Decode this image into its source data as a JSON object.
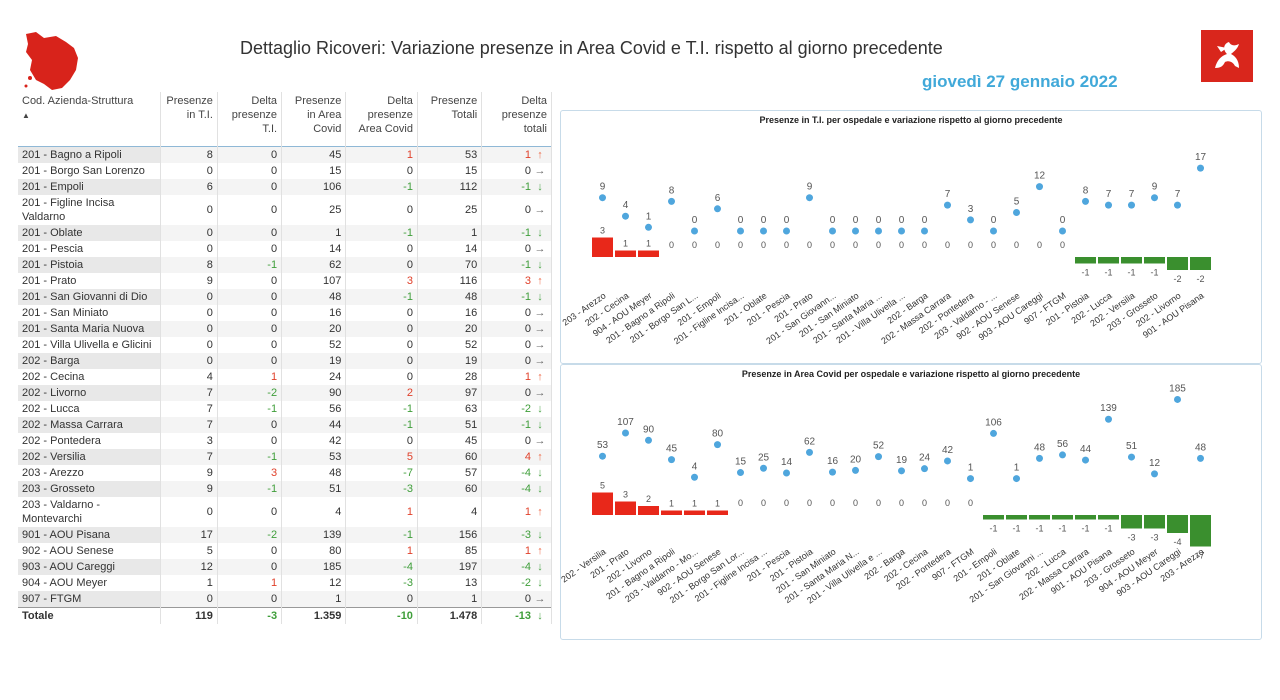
{
  "header": {
    "title": "Dettaglio Ricoveri: Variazione presenze in Area Covid e T.I. rispetto al giorno precedente",
    "date": "giovedì 27 gennaio 2022"
  },
  "table": {
    "columns": [
      "Cod. Azienda-Struttura",
      "Presenze in T.I.",
      "Delta presenze T.I.",
      "Presenze in Area Covid",
      "Delta presenze Area Covid",
      "Presenze Totali",
      "Delta presenze totali"
    ],
    "rows": [
      [
        "201 - Bagno a Ripoli",
        "8",
        "0",
        "45",
        "1",
        "53",
        "1"
      ],
      [
        "201 - Borgo San Lorenzo",
        "0",
        "0",
        "15",
        "0",
        "15",
        "0"
      ],
      [
        "201 - Empoli",
        "6",
        "0",
        "106",
        "-1",
        "112",
        "-1"
      ],
      [
        "201 - Figline Incisa Valdarno",
        "0",
        "0",
        "25",
        "0",
        "25",
        "0"
      ],
      [
        "201 - Oblate",
        "0",
        "0",
        "1",
        "-1",
        "1",
        "-1"
      ],
      [
        "201 - Pescia",
        "0",
        "0",
        "14",
        "0",
        "14",
        "0"
      ],
      [
        "201 - Pistoia",
        "8",
        "-1",
        "62",
        "0",
        "70",
        "-1"
      ],
      [
        "201 - Prato",
        "9",
        "0",
        "107",
        "3",
        "116",
        "3"
      ],
      [
        "201 - San Giovanni di Dio",
        "0",
        "0",
        "48",
        "-1",
        "48",
        "-1"
      ],
      [
        "201 - San Miniato",
        "0",
        "0",
        "16",
        "0",
        "16",
        "0"
      ],
      [
        "201 - Santa Maria Nuova",
        "0",
        "0",
        "20",
        "0",
        "20",
        "0"
      ],
      [
        "201 - Villa Ulivella e Glicini",
        "0",
        "0",
        "52",
        "0",
        "52",
        "0"
      ],
      [
        "202 - Barga",
        "0",
        "0",
        "19",
        "0",
        "19",
        "0"
      ],
      [
        "202 - Cecina",
        "4",
        "1",
        "24",
        "0",
        "28",
        "1"
      ],
      [
        "202 - Livorno",
        "7",
        "-2",
        "90",
        "2",
        "97",
        "0"
      ],
      [
        "202 - Lucca",
        "7",
        "-1",
        "56",
        "-1",
        "63",
        "-2"
      ],
      [
        "202 - Massa Carrara",
        "7",
        "0",
        "44",
        "-1",
        "51",
        "-1"
      ],
      [
        "202 - Pontedera",
        "3",
        "0",
        "42",
        "0",
        "45",
        "0"
      ],
      [
        "202 - Versilia",
        "7",
        "-1",
        "53",
        "5",
        "60",
        "4"
      ],
      [
        "203 - Arezzo",
        "9",
        "3",
        "48",
        "-7",
        "57",
        "-4"
      ],
      [
        "203 - Grosseto",
        "9",
        "-1",
        "51",
        "-3",
        "60",
        "-4"
      ],
      [
        "203 - Valdarno - Montevarchi",
        "0",
        "0",
        "4",
        "1",
        "4",
        "1"
      ],
      [
        "901 - AOU Pisana",
        "17",
        "-2",
        "139",
        "-1",
        "156",
        "-3"
      ],
      [
        "902 - AOU Senese",
        "5",
        "0",
        "80",
        "1",
        "85",
        "1"
      ],
      [
        "903 - AOU Careggi",
        "12",
        "0",
        "185",
        "-4",
        "197",
        "-4"
      ],
      [
        "904 - AOU Meyer",
        "1",
        "1",
        "12",
        "-3",
        "13",
        "-2"
      ],
      [
        "907 - FTGM",
        "0",
        "0",
        "1",
        "0",
        "1",
        "0"
      ]
    ],
    "total": [
      "Totale",
      "119",
      "-3",
      "1.359",
      "-10",
      "1.478",
      "-13"
    ]
  },
  "icons": {
    "up": "arrow-up-icon",
    "down": "arrow-down-icon",
    "flat": "arrow-right-icon"
  },
  "colors": {
    "accent": "#41a9d9",
    "up": "#ee6b4a",
    "down": "#4ea64a",
    "bar_pos": "#e8281a",
    "bar_neg": "#3a8f2e",
    "dot": "#4fa6dd"
  },
  "chart_data": [
    {
      "type": "bar",
      "title": "Presenze in T.I. per ospedale e variazione rispetto al giorno precedente",
      "categories": [
        "203 - Arezzo",
        "202 - Cecina",
        "904 - AOU Meyer",
        "201 - Bagno a Ripoli",
        "201 - Borgo San L...",
        "201 - Empoli",
        "201 - Figline Incisa...",
        "201 - Oblate",
        "201 - Pescia",
        "201 - Prato",
        "201 - San Giovann...",
        "201 - San Miniato",
        "201 - Santa Maria ...",
        "201 - Villa Ulivella ...",
        "202 - Barga",
        "202 - Massa Carrara",
        "202 - Pontedera",
        "203 - Valdarno - ...",
        "902 - AOU Senese",
        "903 - AOU Careggi",
        "907 - FTGM",
        "201 - Pistoia",
        "202 - Lucca",
        "202 - Versilia",
        "203 - Grosseto",
        "202 - Livorno",
        "901 - AOU Pisana"
      ],
      "series": [
        {
          "name": "Presenze",
          "values": [
            9,
            4,
            1,
            8,
            0,
            6,
            0,
            0,
            0,
            9,
            0,
            0,
            0,
            0,
            0,
            7,
            3,
            0,
            5,
            12,
            0,
            8,
            7,
            7,
            9,
            7,
            17
          ]
        },
        {
          "name": "Variazione",
          "values": [
            3,
            1,
            1,
            0,
            0,
            0,
            0,
            0,
            0,
            0,
            0,
            0,
            0,
            0,
            0,
            0,
            0,
            0,
            0,
            0,
            0,
            -1,
            -1,
            -1,
            -1,
            -2,
            -2
          ]
        }
      ]
    },
    {
      "type": "bar",
      "title": "Presenze in Area Covid per ospedale e variazione rispetto al giorno precedente",
      "categories": [
        "202 - Versilia",
        "201 - Prato",
        "202 - Livorno",
        "201 - Bagno a Ripoli",
        "203 - Valdarno - Mo...",
        "902 - AOU Senese",
        "201 - Borgo San Lor...",
        "201 - Figline Incisa ...",
        "201 - Pescia",
        "201 - Pistoia",
        "201 - San Miniato",
        "201 - Santa Maria N...",
        "201 - Villa Ulivella e ...",
        "202 - Barga",
        "202 - Cecina",
        "202 - Pontedera",
        "907 - FTGM",
        "201 - Empoli",
        "201 - Oblate",
        "201 - San Giovanni ...",
        "202 - Lucca",
        "202 - Massa Carrara",
        "901 - AOU Pisana",
        "203 - Grosseto",
        "904 - AOU Meyer",
        "903 - AOU Careggi",
        "203 - Arezzo"
      ],
      "series": [
        {
          "name": "Presenze",
          "values": [
            53,
            107,
            90,
            45,
            4,
            80,
            15,
            25,
            14,
            62,
            16,
            20,
            52,
            19,
            24,
            42,
            1,
            106,
            1,
            48,
            56,
            44,
            139,
            51,
            12,
            185,
            48
          ]
        },
        {
          "name": "Variazione",
          "values": [
            5,
            3,
            2,
            1,
            1,
            1,
            0,
            0,
            0,
            0,
            0,
            0,
            0,
            0,
            0,
            0,
            0,
            -1,
            -1,
            -1,
            -1,
            -1,
            -1,
            -3,
            -3,
            -4,
            -7
          ]
        }
      ]
    }
  ]
}
